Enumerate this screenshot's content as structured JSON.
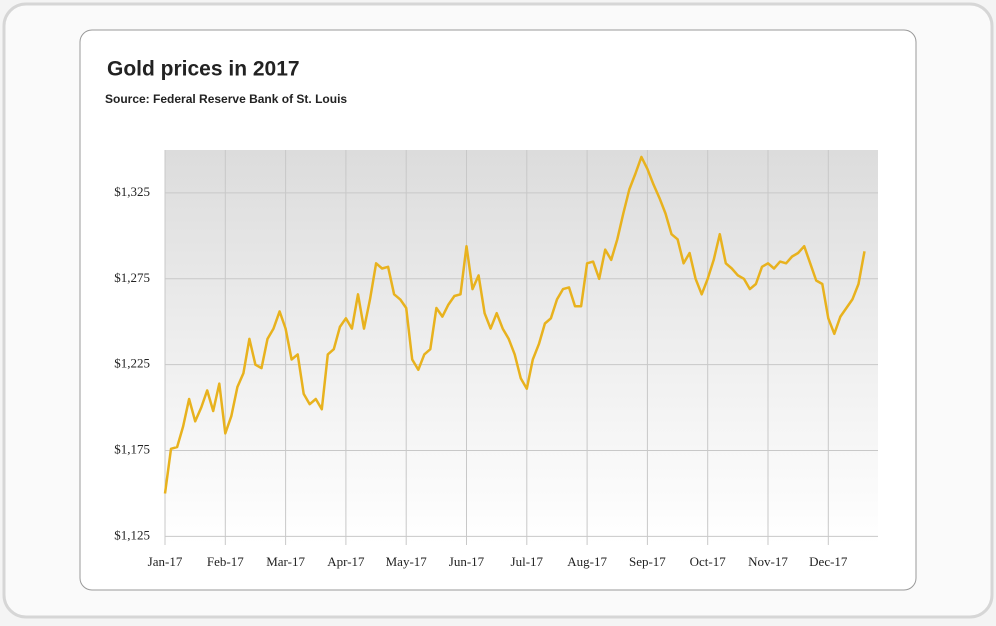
{
  "chart_data": {
    "type": "line",
    "title": "Gold prices in 2017",
    "subtitle": "Source: Federal Reserve Bank of St. Louis",
    "categories": [
      "Jan-17",
      null,
      null,
      null,
      null,
      null,
      null,
      null,
      null,
      null,
      "Feb-17",
      null,
      null,
      null,
      null,
      null,
      null,
      null,
      null,
      null,
      "Mar-17",
      null,
      null,
      null,
      null,
      null,
      null,
      null,
      null,
      null,
      "Apr-17",
      null,
      null,
      null,
      null,
      null,
      null,
      null,
      null,
      null,
      "May-17",
      null,
      null,
      null,
      null,
      null,
      null,
      null,
      null,
      null,
      "Jun-17",
      null,
      null,
      null,
      null,
      null,
      null,
      null,
      null,
      null,
      "Jul-17",
      null,
      null,
      null,
      null,
      null,
      null,
      null,
      null,
      null,
      "Aug-17",
      null,
      null,
      null,
      null,
      null,
      null,
      null,
      null,
      null,
      "Sep-17",
      null,
      null,
      null,
      null,
      null,
      null,
      null,
      null,
      null,
      "Oct-17",
      null,
      null,
      null,
      null,
      null,
      null,
      null,
      null,
      null,
      "Nov-17",
      null,
      null,
      null,
      null,
      null,
      null,
      null,
      null,
      null,
      "Dec-17",
      null,
      null,
      null,
      null,
      null,
      null
    ],
    "values": [
      1150,
      1176,
      1177,
      1189,
      1205,
      1192,
      1200,
      1210,
      1198,
      1214,
      1185,
      1195,
      1212,
      1220,
      1240,
      1225,
      1223,
      1240,
      1246,
      1256,
      1246,
      1228,
      1231,
      1208,
      1202,
      1205,
      1199,
      1231,
      1234,
      1247,
      1252,
      1246,
      1266,
      1246,
      1263,
      1284,
      1281,
      1282,
      1266,
      1263,
      1258,
      1228,
      1222,
      1231,
      1234,
      1258,
      1253,
      1260,
      1265,
      1266,
      1294,
      1269,
      1277,
      1255,
      1246,
      1255,
      1246,
      1240,
      1231,
      1217,
      1211,
      1228,
      1237,
      1249,
      1252,
      1263,
      1269,
      1270,
      1259,
      1259,
      1284,
      1285,
      1275,
      1292,
      1286,
      1298,
      1313,
      1327,
      1336,
      1346,
      1339,
      1330,
      1322,
      1313,
      1301,
      1298,
      1284,
      1290,
      1275,
      1266,
      1275,
      1286,
      1301,
      1284,
      1281,
      1277,
      1275,
      1269,
      1272,
      1282,
      1284,
      1281,
      1285,
      1284,
      1288,
      1290,
      1294,
      1284,
      1274,
      1272,
      1252,
      1243,
      1253,
      1258,
      1263,
      1272,
      1291
    ],
    "color": "#e8b21e",
    "ylim": [
      1120,
      1350
    ],
    "yticks": [
      {
        "value": 1125,
        "label": "$1,125"
      },
      {
        "value": 1175,
        "label": "$1,175"
      },
      {
        "value": 1225,
        "label": "$1,225"
      },
      {
        "value": 1275,
        "label": "$1,275"
      },
      {
        "value": 1325,
        "label": "$1,325"
      }
    ],
    "grid": true
  }
}
